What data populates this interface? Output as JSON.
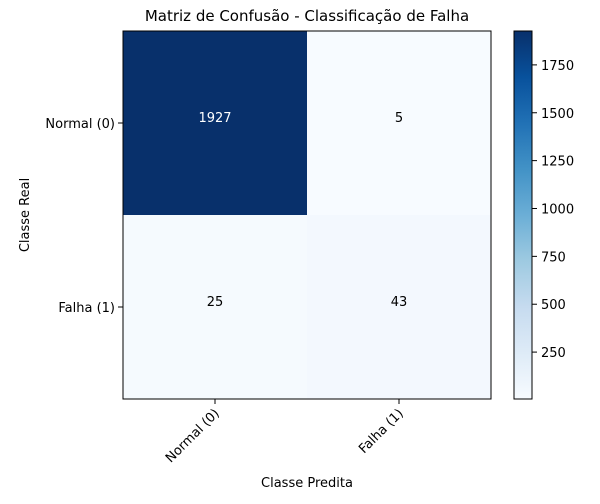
{
  "chart_data": {
    "type": "heatmap",
    "title": "Matriz de Confusão - Classificação de Falha",
    "xlabel": "Classe Predita",
    "ylabel": "Classe Real",
    "x_categories": [
      "Normal (0)",
      "Falha (1)"
    ],
    "y_categories": [
      "Normal (0)",
      "Falha (1)"
    ],
    "matrix": [
      [
        1927,
        5
      ],
      [
        25,
        43
      ]
    ],
    "colorbar": {
      "ticks": [
        250,
        500,
        750,
        1000,
        1250,
        1500,
        1750
      ],
      "range": [
        5,
        1927
      ],
      "colormap": "Blues"
    }
  }
}
